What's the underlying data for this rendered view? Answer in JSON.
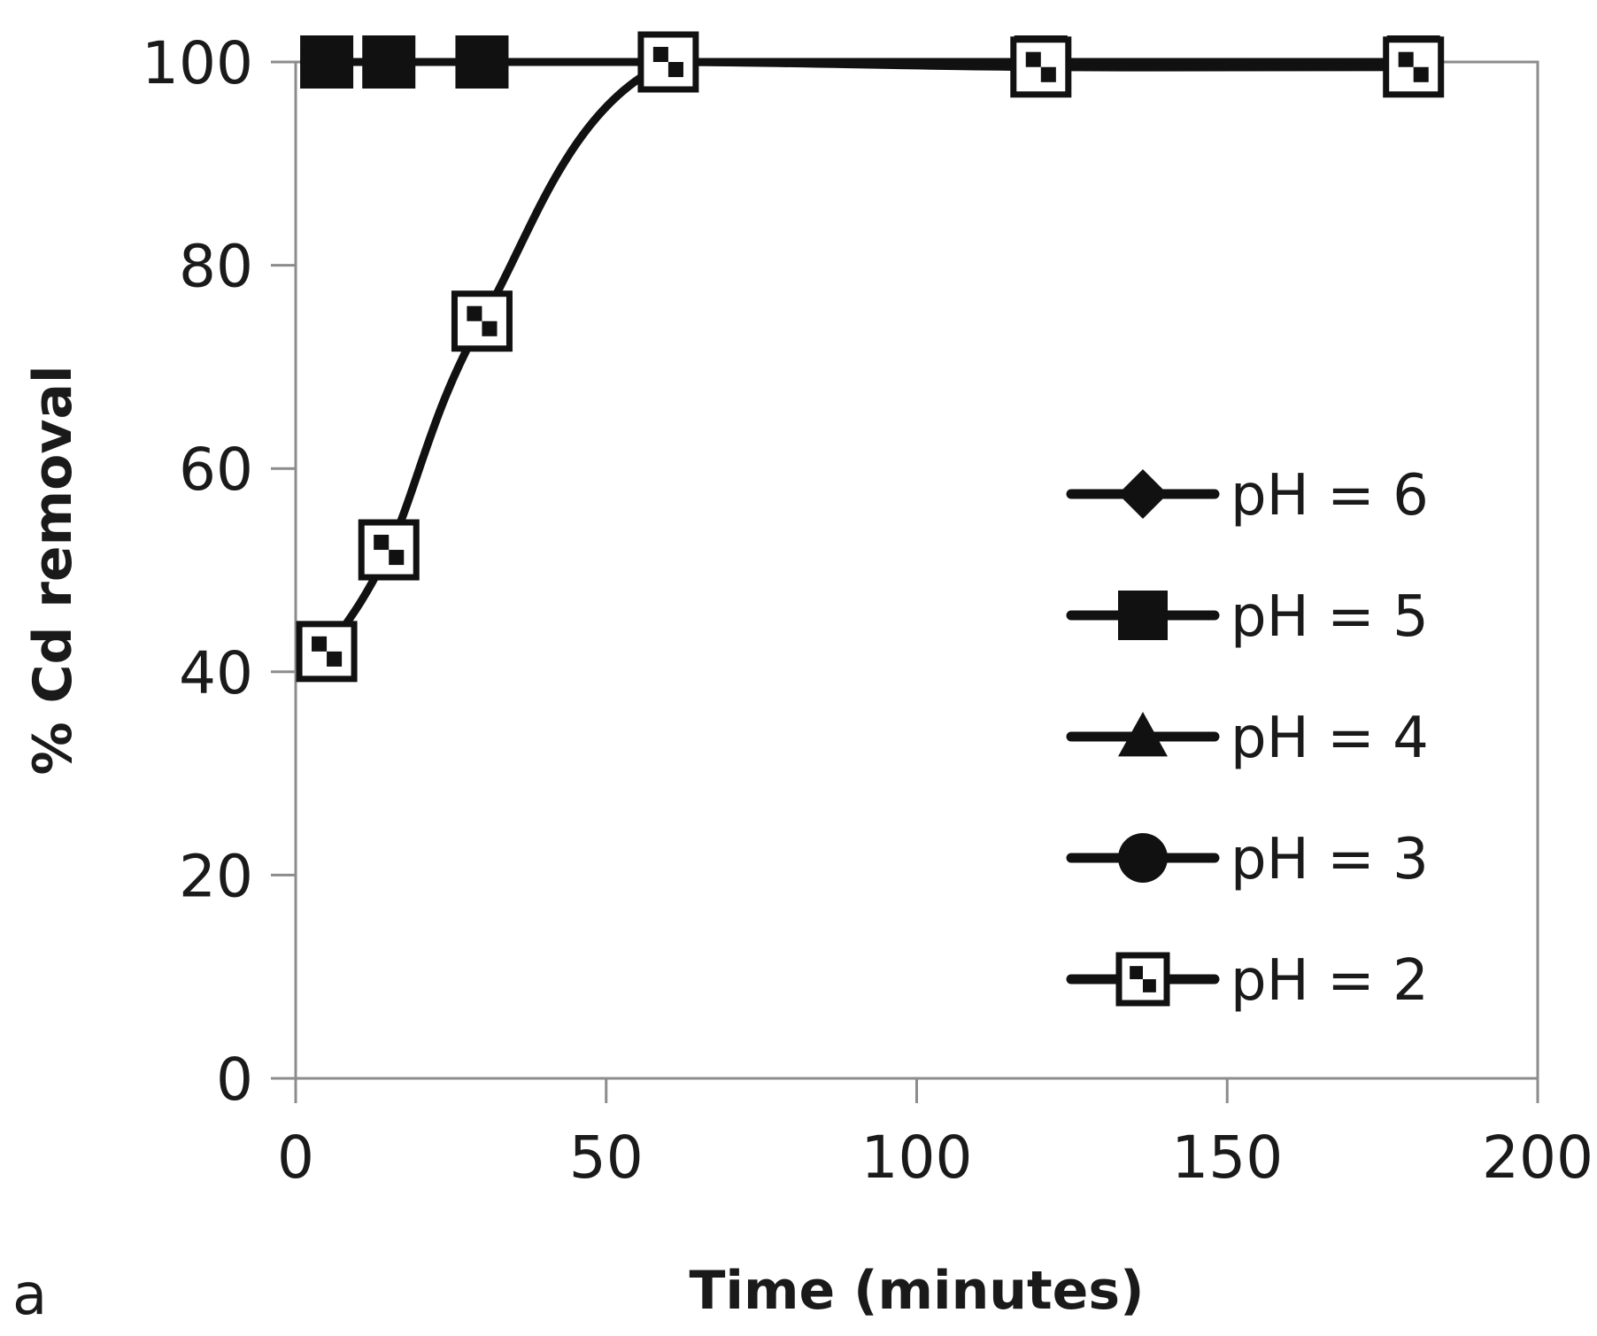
{
  "chart_data": {
    "type": "line",
    "panel_label": "a",
    "title": "",
    "xlabel": "Time (minutes)",
    "ylabel": "% Cd removal",
    "xlim": [
      0,
      200
    ],
    "ylim": [
      0,
      100
    ],
    "xticks": [
      0,
      50,
      100,
      150,
      200
    ],
    "yticks": [
      0,
      20,
      40,
      60,
      80,
      100
    ],
    "grid": false,
    "legend_position": "right",
    "series": [
      {
        "name": "pH = 6",
        "marker": "diamond",
        "color": "#111111",
        "x": [
          5,
          15,
          30,
          60,
          120,
          180
        ],
        "y": [
          100,
          100,
          100,
          100,
          100,
          100
        ]
      },
      {
        "name": "pH = 5",
        "marker": "square",
        "color": "#111111",
        "x": [
          5,
          15,
          30,
          60,
          120,
          180
        ],
        "y": [
          100,
          100,
          100,
          100,
          100,
          100
        ]
      },
      {
        "name": "pH = 4",
        "marker": "triangle",
        "color": "#111111",
        "x": [
          5,
          15,
          30,
          60,
          120,
          180
        ],
        "y": [
          100,
          100,
          100,
          100,
          100,
          100
        ]
      },
      {
        "name": "pH = 3",
        "marker": "circle",
        "color": "#111111",
        "x": [
          5,
          15,
          30,
          60,
          120,
          180
        ],
        "y": [
          100,
          100,
          100,
          100,
          100,
          100
        ]
      },
      {
        "name": "pH = 2",
        "marker": "checkered-square",
        "color": "#111111",
        "x": [
          5,
          15,
          30,
          60,
          120,
          180
        ],
        "y": [
          42,
          52,
          74.5,
          100,
          99.5,
          99.5
        ]
      }
    ]
  }
}
